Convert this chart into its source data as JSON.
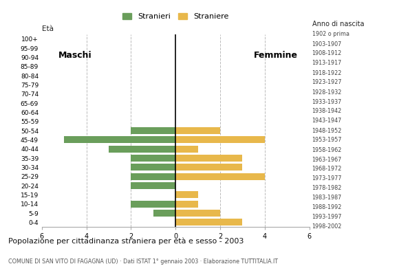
{
  "age_groups": [
    "0-4",
    "5-9",
    "10-14",
    "15-19",
    "20-24",
    "25-29",
    "30-34",
    "35-39",
    "40-44",
    "45-49",
    "50-54",
    "55-59",
    "60-64",
    "65-69",
    "70-74",
    "75-79",
    "80-84",
    "85-89",
    "90-94",
    "95-99",
    "100+"
  ],
  "birth_years": [
    "1998-2002",
    "1993-1997",
    "1988-1992",
    "1983-1987",
    "1978-1982",
    "1973-1977",
    "1968-1972",
    "1963-1967",
    "1958-1962",
    "1953-1957",
    "1948-1952",
    "1943-1947",
    "1938-1942",
    "1933-1937",
    "1928-1932",
    "1923-1927",
    "1918-1922",
    "1913-1917",
    "1908-1912",
    "1903-1907",
    "1902 o prima"
  ],
  "males": [
    0,
    1,
    2,
    0,
    2,
    2,
    2,
    2,
    3,
    5,
    2,
    0,
    0,
    0,
    0,
    0,
    0,
    0,
    0,
    0,
    0
  ],
  "females": [
    3,
    2,
    1,
    1,
    0,
    4,
    3,
    3,
    1,
    4,
    2,
    0,
    0,
    0,
    0,
    0,
    0,
    0,
    0,
    0,
    0
  ],
  "male_color": "#6a9e5b",
  "female_color": "#e8b84b",
  "title": "Popolazione per cittadinanza straniera per età e sesso - 2003",
  "subtitle": "COMUNE DI SAN VITO DI FAGAGNA (UD) · Dati ISTAT 1° gennaio 2003 · Elaborazione TUTTITALIA.IT",
  "legend_male": "Stranieri",
  "legend_female": "Straniere",
  "label_eta": "Età",
  "label_anno": "Anno di nascita",
  "label_maschi": "Maschi",
  "label_femmine": "Femmine",
  "xlim": 6,
  "bg_color": "#ffffff",
  "grid_color": "#bbbbbb"
}
